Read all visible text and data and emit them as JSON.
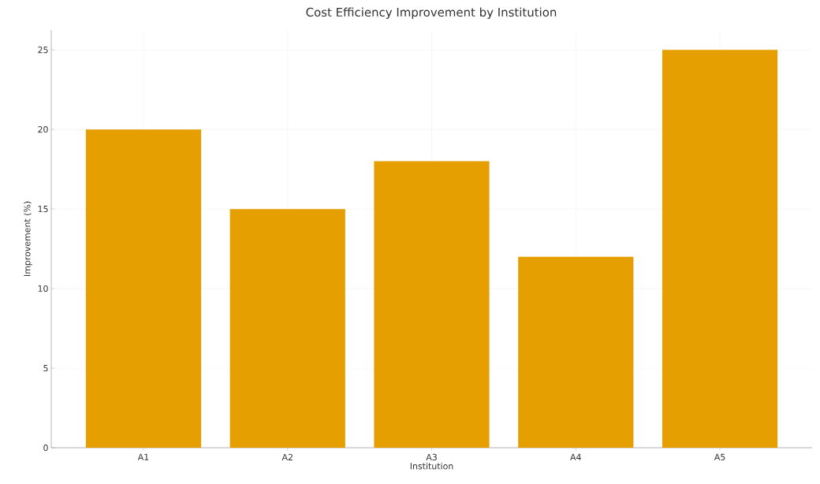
{
  "chart_data": {
    "type": "bar",
    "title": "Cost Efficiency Improvement by Institution",
    "xlabel": "Institution",
    "ylabel": "Improvement (%)",
    "categories": [
      "A1",
      "A2",
      "A3",
      "A4",
      "A5"
    ],
    "values": [
      20,
      15,
      18,
      12,
      25
    ],
    "color": "#e69f00",
    "ylim": [
      0,
      26.25
    ],
    "yticks": [
      0,
      5,
      10,
      15,
      20,
      25
    ],
    "grid": true
  }
}
